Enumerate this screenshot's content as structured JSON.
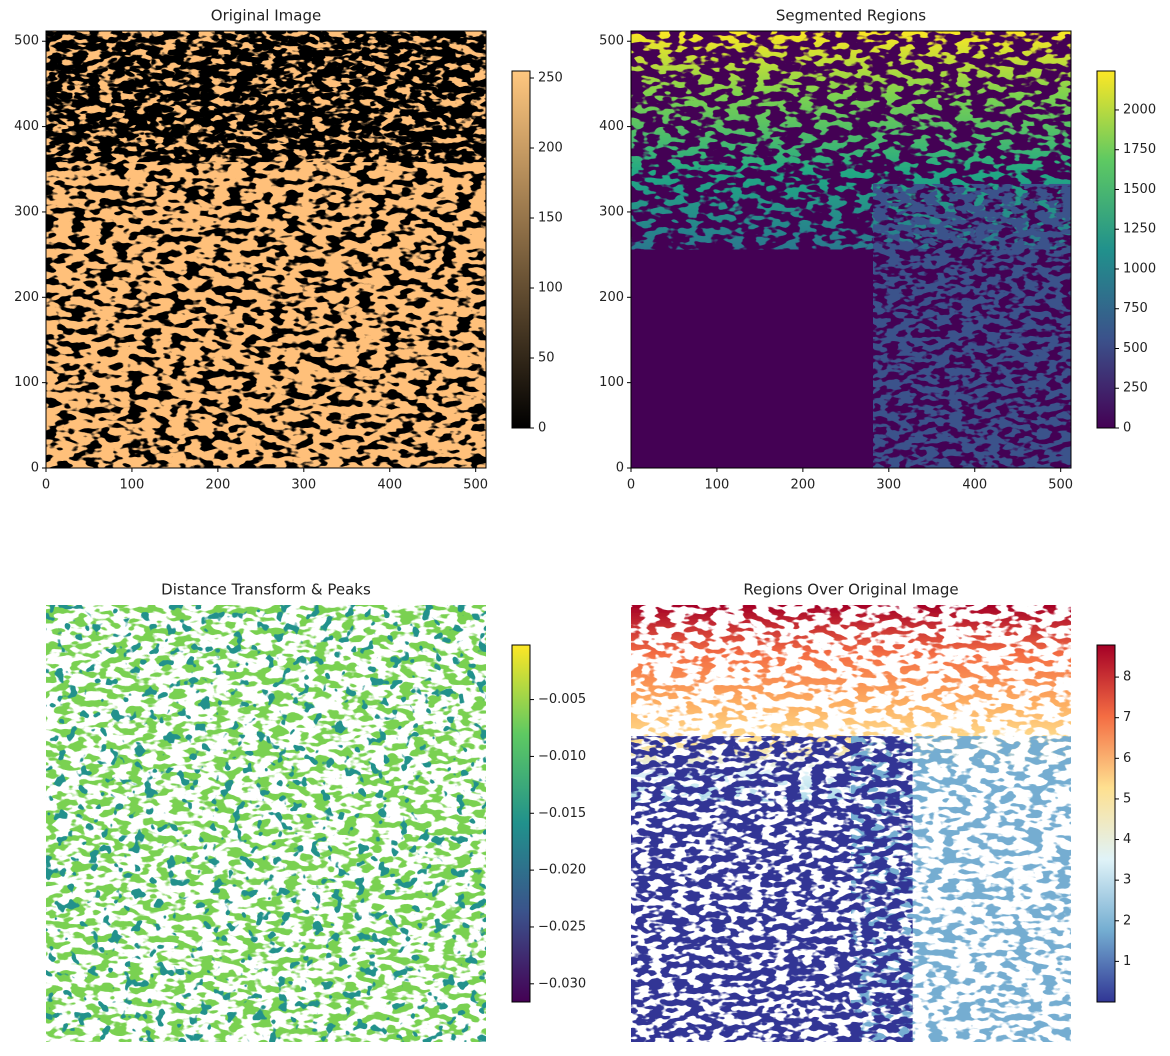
{
  "chart_data": [
    {
      "type": "image",
      "title": "Original Image",
      "cmap": "copper",
      "axis": true,
      "xlim": [
        0,
        512
      ],
      "ylim": [
        0,
        512
      ],
      "xticks": [
        0,
        100,
        200,
        300,
        400,
        500
      ],
      "yticks": [
        0,
        100,
        200,
        300,
        400,
        500
      ],
      "clim": [
        0,
        255
      ],
      "cticks": [
        0,
        50,
        100,
        150,
        200,
        250
      ]
    },
    {
      "type": "image",
      "title": "Segmented Regions",
      "cmap": "viridis",
      "axis": true,
      "xlim": [
        0,
        512
      ],
      "ylim": [
        0,
        512
      ],
      "xticks": [
        0,
        100,
        200,
        300,
        400,
        500
      ],
      "yticks": [
        0,
        100,
        200,
        300,
        400,
        500
      ],
      "clim": [
        0,
        2245
      ],
      "cticks": [
        0,
        250,
        500,
        750,
        1000,
        1250,
        1500,
        1750,
        2000
      ]
    },
    {
      "type": "image",
      "title": "Distance Transform & Peaks",
      "cmap": "viridis",
      "axis": false,
      "clim": [
        -0.0316,
        -0.0002
      ],
      "cticks": [
        {
          "value": -0.03,
          "label": "−0.030"
        },
        {
          "value": -0.025,
          "label": "−0.025"
        },
        {
          "value": -0.02,
          "label": "−0.020"
        },
        {
          "value": -0.015,
          "label": "−0.015"
        },
        {
          "value": -0.01,
          "label": "−0.010"
        },
        {
          "value": -0.005,
          "label": "−0.005"
        }
      ]
    },
    {
      "type": "image",
      "title": "Regions Over Original Image",
      "cmap": "RdYlBu_r",
      "axis": false,
      "clim": [
        0,
        8.79
      ],
      "cticks": [
        1,
        2,
        3,
        4,
        5,
        6,
        7,
        8
      ]
    }
  ]
}
